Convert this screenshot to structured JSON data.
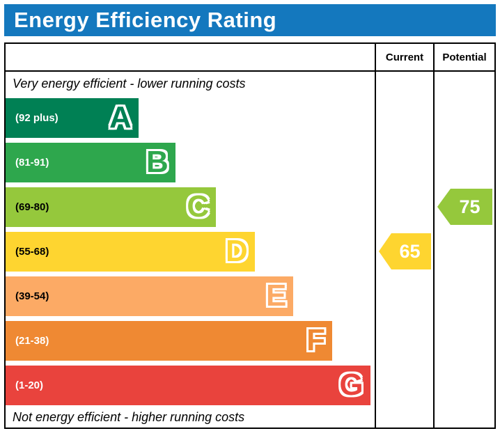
{
  "title_bar": {
    "title": "Energy Efficiency Rating",
    "bg_color": "#1478be",
    "text_color": "#ffffff"
  },
  "columns": {
    "current_label": "Current",
    "potential_label": "Potential"
  },
  "notes": {
    "top": "Very energy efficient - lower running costs",
    "bottom": "Not energy efficient - higher running costs"
  },
  "chart_data": {
    "type": "bar",
    "subtype": "epc-energy-efficiency-rating",
    "title": "Energy Efficiency Rating",
    "bands": [
      {
        "letter": "A",
        "range_label": "(92 plus)",
        "color": "#008054",
        "label_color": "#ffffff",
        "width_pct": 36
      },
      {
        "letter": "B",
        "range_label": "(81-91)",
        "color": "#2ea74d",
        "label_color": "#ffffff",
        "width_pct": 46
      },
      {
        "letter": "C",
        "range_label": "(69-80)",
        "color": "#95c83c",
        "label_color": "#000000",
        "width_pct": 57
      },
      {
        "letter": "D",
        "range_label": "(55-68)",
        "color": "#fed530",
        "label_color": "#000000",
        "width_pct": 67.5
      },
      {
        "letter": "E",
        "range_label": "(39-54)",
        "color": "#fcaa65",
        "label_color": "#000000",
        "width_pct": 78
      },
      {
        "letter": "F",
        "range_label": "(21-38)",
        "color": "#ef8933",
        "label_color": "#ffffff",
        "width_pct": 88.5
      },
      {
        "letter": "G",
        "range_label": "(1-20)",
        "color": "#e9433d",
        "label_color": "#ffffff",
        "width_pct": 98.8
      }
    ],
    "current": {
      "value": 65,
      "band_letter": "D",
      "band_index": 3,
      "color": "#fed530",
      "text_color": "#ffffff"
    },
    "potential": {
      "value": 75,
      "band_letter": "C",
      "band_index": 2,
      "color": "#95c83c",
      "text_color": "#ffffff"
    }
  }
}
